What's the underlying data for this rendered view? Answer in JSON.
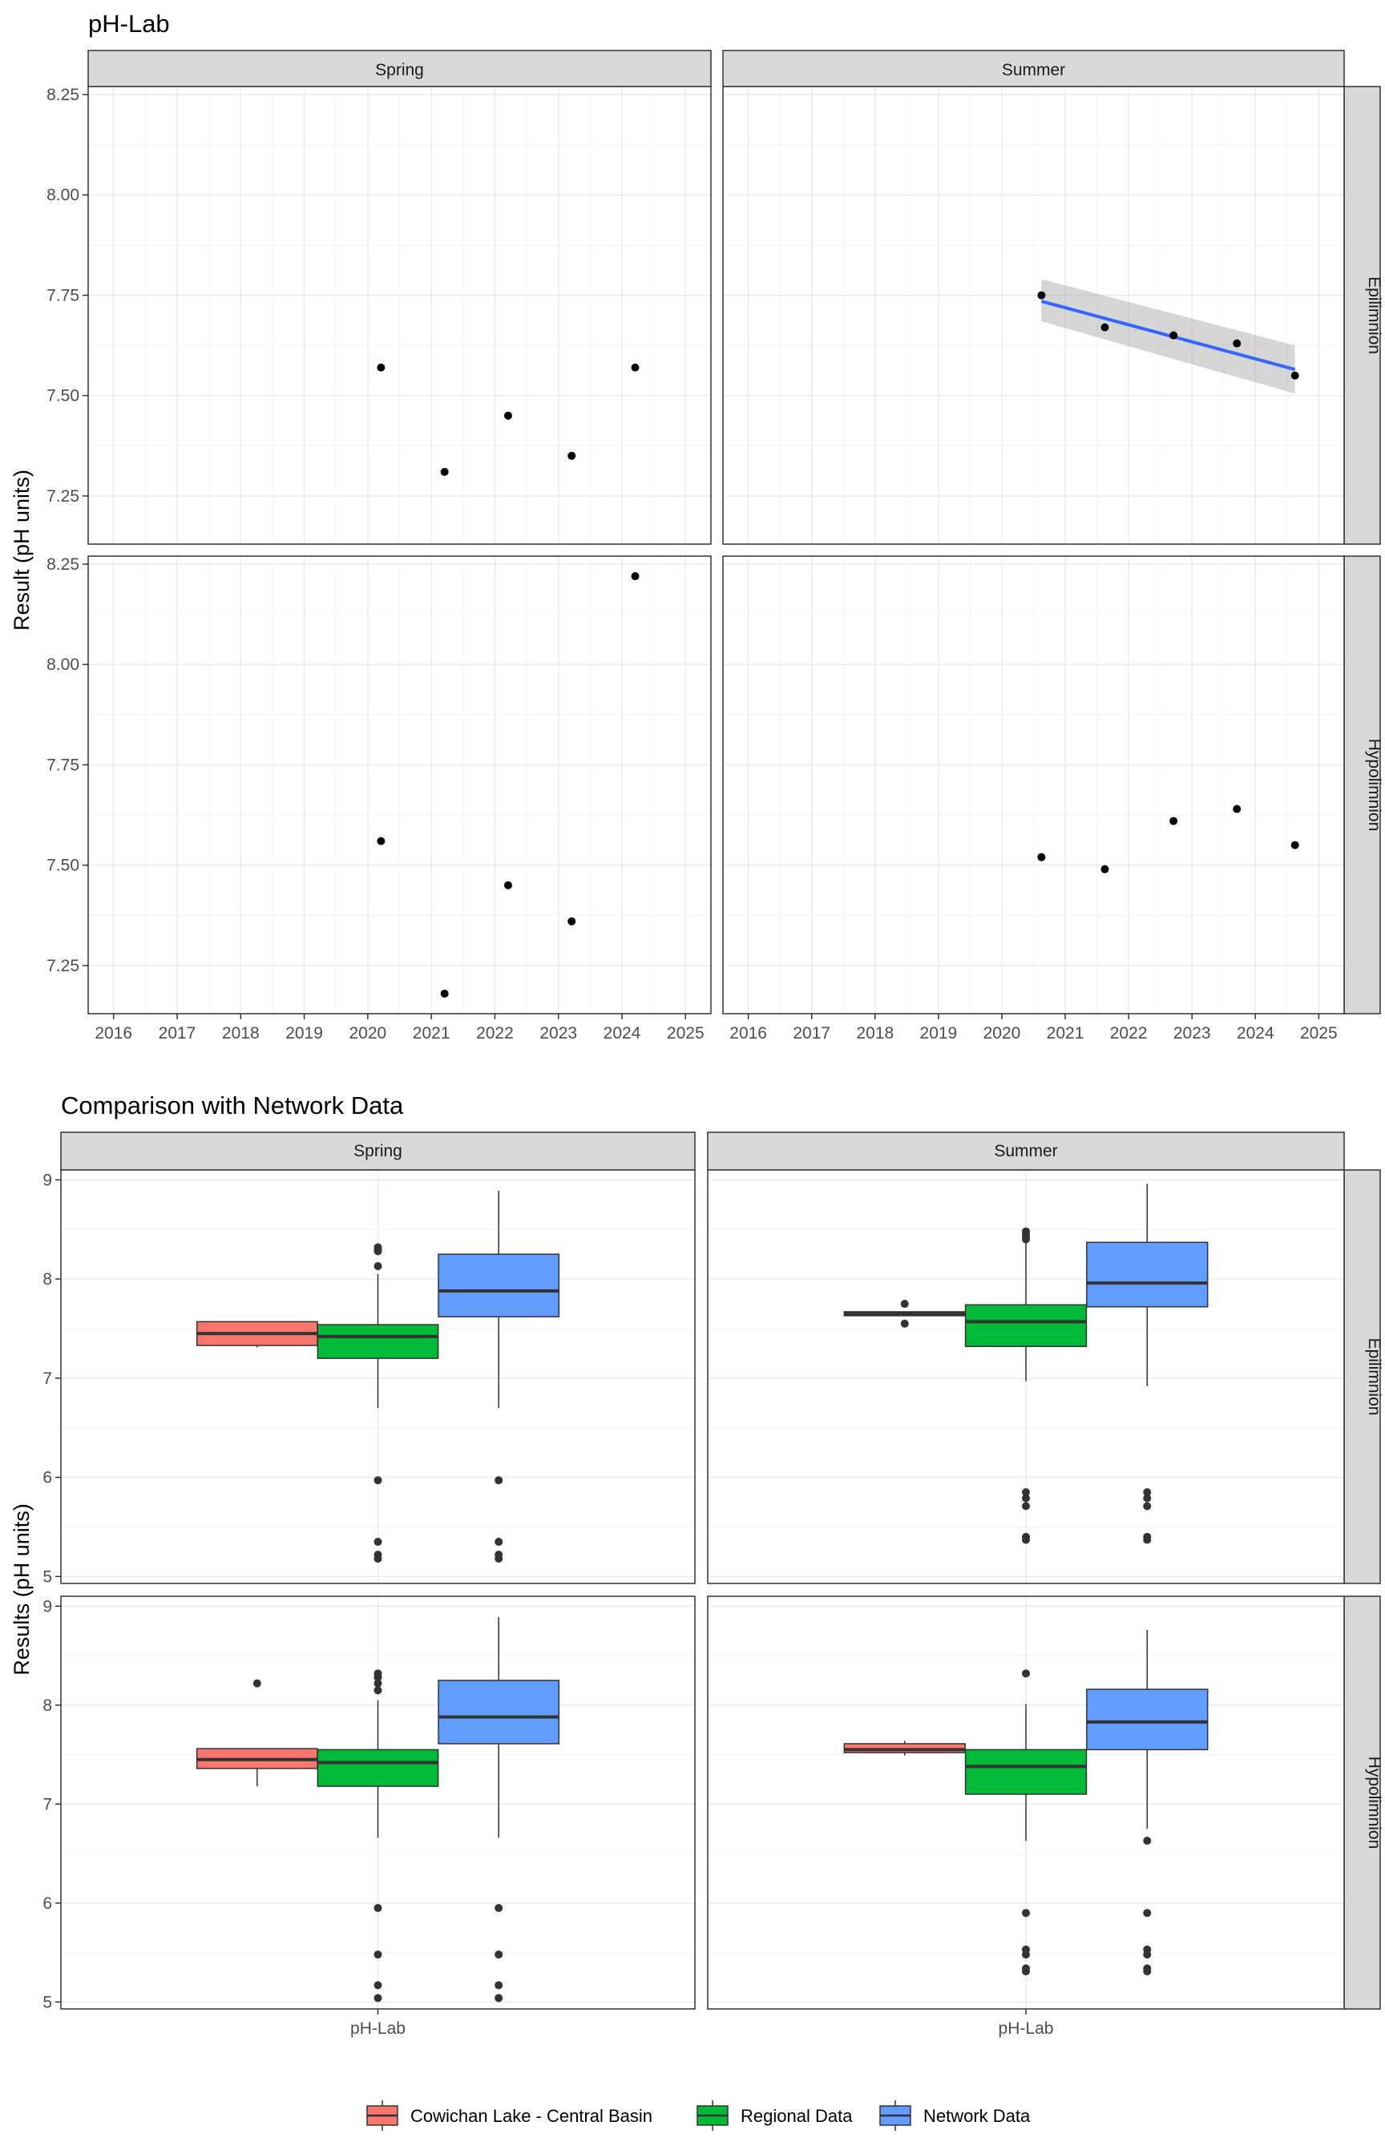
{
  "chart_data": [
    {
      "type": "scatter",
      "title": "pH-Lab",
      "ylabel": "Result (pH units)",
      "xlabel": "",
      "x_ticks": [
        "2016",
        "2017",
        "2018",
        "2019",
        "2020",
        "2021",
        "2022",
        "2023",
        "2024",
        "2025"
      ],
      "x_range": [
        2015.6,
        2025.4
      ],
      "y_ticks": [
        "7.25",
        "7.50",
        "7.75",
        "8.00",
        "8.25"
      ],
      "y_range": [
        7.13,
        8.27
      ],
      "columns": [
        "Spring",
        "Summer"
      ],
      "rows": [
        "Epilimnion",
        "Hypolimnion"
      ],
      "grid": true,
      "panels": [
        {
          "season": "Spring",
          "layer": "Epilimnion",
          "points": [
            {
              "x": "2020-03",
              "y": 7.57
            },
            {
              "x": "2021-03",
              "y": 7.31
            },
            {
              "x": "2022-03",
              "y": 7.45
            },
            {
              "x": "2023-03",
              "y": 7.35
            },
            {
              "x": "2024-03",
              "y": 7.57
            }
          ]
        },
        {
          "season": "Summer",
          "layer": "Epilimnion",
          "points": [
            {
              "x": "2020-08",
              "y": 7.75
            },
            {
              "x": "2021-08",
              "y": 7.67
            },
            {
              "x": "2022-09",
              "y": 7.65
            },
            {
              "x": "2023-09",
              "y": 7.63
            },
            {
              "x": "2024-08",
              "y": 7.55
            }
          ],
          "trend": {
            "type": "linear",
            "color": "#3366FF",
            "start": {
              "x": "2020-08",
              "y": 7.735
            },
            "end": {
              "x": "2024-08",
              "y": 7.565
            },
            "band_start": [
              7.685,
              7.79
            ],
            "band_end": [
              7.505,
              7.625
            ]
          }
        },
        {
          "season": "Spring",
          "layer": "Hypolimnion",
          "points": [
            {
              "x": "2020-03",
              "y": 7.56
            },
            {
              "x": "2021-03",
              "y": 7.18
            },
            {
              "x": "2022-03",
              "y": 7.45
            },
            {
              "x": "2023-03",
              "y": 7.36
            },
            {
              "x": "2024-03",
              "y": 8.22
            }
          ]
        },
        {
          "season": "Summer",
          "layer": "Hypolimnion",
          "points": [
            {
              "x": "2020-08",
              "y": 7.52
            },
            {
              "x": "2021-08",
              "y": 7.49
            },
            {
              "x": "2022-09",
              "y": 7.61
            },
            {
              "x": "2023-09",
              "y": 7.64
            },
            {
              "x": "2024-08",
              "y": 7.55
            }
          ]
        }
      ]
    },
    {
      "type": "box",
      "title": "Comparison with Network Data",
      "ylabel": "Results (pH units)",
      "x_category": "pH-Lab",
      "y_ticks": [
        "5",
        "6",
        "7",
        "8",
        "9"
      ],
      "y_range": [
        4.93,
        9.1
      ],
      "columns": [
        "Spring",
        "Summer"
      ],
      "rows": [
        "Epilimnion",
        "Hypolimnion"
      ],
      "grid": true,
      "legend": {
        "position": "bottom",
        "entries": [
          {
            "name": "Cowichan Lake - Central Basin",
            "color": "#F8766D"
          },
          {
            "name": "Regional Data",
            "color": "#00BA38"
          },
          {
            "name": "Network Data",
            "color": "#619CFF"
          }
        ]
      },
      "panels": [
        {
          "season": "Spring",
          "layer": "Epilimnion",
          "boxes": [
            {
              "group": "Cowichan Lake - Central Basin",
              "q1": 7.33,
              "median": 7.45,
              "q3": 7.57,
              "whisker_low": 7.31,
              "whisker_high": 7.57,
              "outliers": []
            },
            {
              "group": "Regional Data",
              "q1": 7.2,
              "median": 7.42,
              "q3": 7.54,
              "whisker_low": 6.7,
              "whisker_high": 8.05,
              "outliers": [
                8.3,
                8.32,
                8.28,
                8.13,
                5.97,
                5.35,
                5.22,
                5.18
              ]
            },
            {
              "group": "Network Data",
              "q1": 7.62,
              "median": 7.88,
              "q3": 8.25,
              "whisker_low": 6.7,
              "whisker_high": 8.89,
              "outliers": [
                5.97,
                5.35,
                5.22,
                5.18
              ]
            }
          ]
        },
        {
          "season": "Summer",
          "layer": "Epilimnion",
          "boxes": [
            {
              "group": "Cowichan Lake - Central Basin",
              "q1": 7.63,
              "median": 7.65,
              "q3": 7.67,
              "whisker_low": 7.63,
              "whisker_high": 7.67,
              "outliers": [
                7.75,
                7.55
              ]
            },
            {
              "group": "Regional Data",
              "q1": 7.32,
              "median": 7.57,
              "q3": 7.74,
              "whisker_low": 6.97,
              "whisker_high": 8.38,
              "outliers": [
                8.48,
                8.45,
                8.42,
                8.4,
                5.85,
                5.79,
                5.71,
                5.4,
                5.37
              ]
            },
            {
              "group": "Network Data",
              "q1": 7.72,
              "median": 7.96,
              "q3": 8.37,
              "whisker_low": 6.92,
              "whisker_high": 8.96,
              "outliers": [
                5.85,
                5.79,
                5.71,
                5.4,
                5.37
              ]
            }
          ]
        },
        {
          "season": "Spring",
          "layer": "Hypolimnion",
          "boxes": [
            {
              "group": "Cowichan Lake - Central Basin",
              "q1": 7.36,
              "median": 7.45,
              "q3": 7.56,
              "whisker_low": 7.18,
              "whisker_high": 7.56,
              "outliers": [
                8.22
              ]
            },
            {
              "group": "Regional Data",
              "q1": 7.18,
              "median": 7.42,
              "q3": 7.55,
              "whisker_low": 6.66,
              "whisker_high": 8.05,
              "outliers": [
                8.32,
                8.28,
                8.22,
                8.15,
                5.95,
                5.48,
                5.17,
                5.04
              ]
            },
            {
              "group": "Network Data",
              "q1": 7.61,
              "median": 7.88,
              "q3": 8.25,
              "whisker_low": 6.66,
              "whisker_high": 8.89,
              "outliers": [
                5.95,
                5.48,
                5.17,
                5.04
              ]
            }
          ]
        },
        {
          "season": "Summer",
          "layer": "Hypolimnion",
          "boxes": [
            {
              "group": "Cowichan Lake - Central Basin",
              "q1": 7.52,
              "median": 7.55,
              "q3": 7.61,
              "whisker_low": 7.49,
              "whisker_high": 7.64,
              "outliers": []
            },
            {
              "group": "Regional Data",
              "q1": 7.1,
              "median": 7.38,
              "q3": 7.55,
              "whisker_low": 6.63,
              "whisker_high": 8.01,
              "outliers": [
                8.32,
                5.9,
                5.53,
                5.48,
                5.34,
                5.31
              ]
            },
            {
              "group": "Network Data",
              "q1": 7.55,
              "median": 7.83,
              "q3": 8.16,
              "whisker_low": 6.75,
              "whisker_high": 8.76,
              "outliers": [
                6.63,
                5.9,
                5.53,
                5.48,
                5.34,
                5.31
              ]
            }
          ]
        }
      ]
    }
  ]
}
